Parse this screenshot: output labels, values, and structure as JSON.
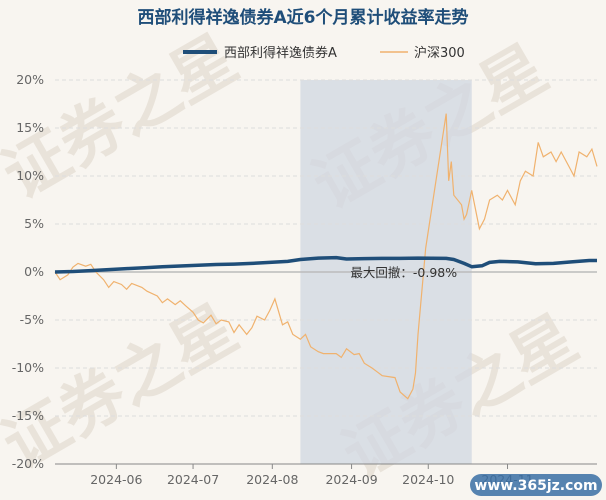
{
  "chart_data": {
    "type": "line",
    "title": "西部利得祥逸债券A近6个月累计收益率走势",
    "series": [
      {
        "name": "西部利得祥逸债券A",
        "color": "#1f4e79",
        "values": [
          [
            "2024-05-08",
            0.0
          ],
          [
            "2024-05-15",
            0.05
          ],
          [
            "2024-05-22",
            0.15
          ],
          [
            "2024-05-29",
            0.25
          ],
          [
            "2024-06-05",
            0.35
          ],
          [
            "2024-06-12",
            0.45
          ],
          [
            "2024-06-19",
            0.55
          ],
          [
            "2024-06-26",
            0.62
          ],
          [
            "2024-07-03",
            0.7
          ],
          [
            "2024-07-10",
            0.78
          ],
          [
            "2024-07-17",
            0.82
          ],
          [
            "2024-07-24",
            0.9
          ],
          [
            "2024-07-31",
            1.0
          ],
          [
            "2024-08-07",
            1.1
          ],
          [
            "2024-08-12",
            1.3
          ],
          [
            "2024-08-19",
            1.45
          ],
          [
            "2024-08-26",
            1.5
          ],
          [
            "2024-08-30",
            1.35
          ],
          [
            "2024-09-06",
            1.4
          ],
          [
            "2024-09-13",
            1.42
          ],
          [
            "2024-09-20",
            1.42
          ],
          [
            "2024-09-27",
            1.45
          ],
          [
            "2024-10-08",
            1.42
          ],
          [
            "2024-10-11",
            1.3
          ],
          [
            "2024-10-15",
            0.9
          ],
          [
            "2024-10-18",
            0.55
          ],
          [
            "2024-10-22",
            0.65
          ],
          [
            "2024-10-25",
            1.0
          ],
          [
            "2024-10-29",
            1.1
          ],
          [
            "2024-11-05",
            1.05
          ],
          [
            "2024-11-12",
            0.85
          ],
          [
            "2024-11-19",
            0.9
          ],
          [
            "2024-11-26",
            1.05
          ],
          [
            "2024-12-03",
            1.2
          ],
          [
            "2024-12-06",
            1.2
          ]
        ]
      },
      {
        "name": "沪深300",
        "color": "#f0b26e",
        "values": [
          [
            "2024-05-08",
            0.0
          ],
          [
            "2024-05-10",
            -0.8
          ],
          [
            "2024-05-13",
            -0.3
          ],
          [
            "2024-05-15",
            0.5
          ],
          [
            "2024-05-17",
            0.9
          ],
          [
            "2024-05-20",
            0.6
          ],
          [
            "2024-05-22",
            0.8
          ],
          [
            "2024-05-24",
            0.0
          ],
          [
            "2024-05-27",
            -0.8
          ],
          [
            "2024-05-29",
            -1.6
          ],
          [
            "2024-05-31",
            -1.0
          ],
          [
            "2024-06-03",
            -1.3
          ],
          [
            "2024-06-05",
            -1.8
          ],
          [
            "2024-06-07",
            -1.2
          ],
          [
            "2024-06-11",
            -1.6
          ],
          [
            "2024-06-13",
            -2.0
          ],
          [
            "2024-06-17",
            -2.5
          ],
          [
            "2024-06-19",
            -3.2
          ],
          [
            "2024-06-21",
            -2.8
          ],
          [
            "2024-06-24",
            -3.4
          ],
          [
            "2024-06-26",
            -3.0
          ],
          [
            "2024-06-28",
            -3.5
          ],
          [
            "2024-07-01",
            -4.2
          ],
          [
            "2024-07-03",
            -5.0
          ],
          [
            "2024-07-05",
            -5.3
          ],
          [
            "2024-07-08",
            -4.5
          ],
          [
            "2024-07-10",
            -5.4
          ],
          [
            "2024-07-12",
            -5.0
          ],
          [
            "2024-07-15",
            -5.2
          ],
          [
            "2024-07-17",
            -6.3
          ],
          [
            "2024-07-19",
            -5.5
          ],
          [
            "2024-07-22",
            -6.5
          ],
          [
            "2024-07-24",
            -5.8
          ],
          [
            "2024-07-26",
            -4.6
          ],
          [
            "2024-07-29",
            -5.0
          ],
          [
            "2024-07-31",
            -4.0
          ],
          [
            "2024-08-02",
            -2.8
          ],
          [
            "2024-08-05",
            -5.5
          ],
          [
            "2024-08-07",
            -5.2
          ],
          [
            "2024-08-09",
            -6.5
          ],
          [
            "2024-08-12",
            -7.0
          ],
          [
            "2024-08-14",
            -6.5
          ],
          [
            "2024-08-16",
            -7.8
          ],
          [
            "2024-08-19",
            -8.3
          ],
          [
            "2024-08-21",
            -8.5
          ],
          [
            "2024-08-23",
            -8.5
          ],
          [
            "2024-08-26",
            -8.5
          ],
          [
            "2024-08-28",
            -8.9
          ],
          [
            "2024-08-30",
            -8.0
          ],
          [
            "2024-09-02",
            -8.6
          ],
          [
            "2024-09-04",
            -8.5
          ],
          [
            "2024-09-06",
            -9.5
          ],
          [
            "2024-09-09",
            -10.0
          ],
          [
            "2024-09-11",
            -10.4
          ],
          [
            "2024-09-13",
            -10.8
          ],
          [
            "2024-09-18",
            -11.0
          ],
          [
            "2024-09-20",
            -12.5
          ],
          [
            "2024-09-23",
            -13.2
          ],
          [
            "2024-09-25",
            -12.2
          ],
          [
            "2024-09-26",
            -10.5
          ],
          [
            "2024-09-27",
            -6.5
          ],
          [
            "2024-09-30",
            2.5
          ],
          [
            "2024-10-08",
            16.5
          ],
          [
            "2024-10-09",
            9.5
          ],
          [
            "2024-10-10",
            11.5
          ],
          [
            "2024-10-11",
            8.0
          ],
          [
            "2024-10-14",
            7.0
          ],
          [
            "2024-10-15",
            5.5
          ],
          [
            "2024-10-16",
            6.0
          ],
          [
            "2024-10-18",
            8.5
          ],
          [
            "2024-10-21",
            4.5
          ],
          [
            "2024-10-23",
            5.5
          ],
          [
            "2024-10-25",
            7.5
          ],
          [
            "2024-10-28",
            8.0
          ],
          [
            "2024-10-30",
            7.5
          ],
          [
            "2024-11-01",
            8.5
          ],
          [
            "2024-11-04",
            7.0
          ],
          [
            "2024-11-06",
            9.5
          ],
          [
            "2024-11-08",
            10.5
          ],
          [
            "2024-11-11",
            10.0
          ],
          [
            "2024-11-13",
            13.5
          ],
          [
            "2024-11-15",
            12.0
          ],
          [
            "2024-11-18",
            12.5
          ],
          [
            "2024-11-20",
            11.5
          ],
          [
            "2024-11-22",
            12.5
          ],
          [
            "2024-11-25",
            11.0
          ],
          [
            "2024-11-27",
            10.0
          ],
          [
            "2024-11-29",
            12.5
          ],
          [
            "2024-12-02",
            12.0
          ],
          [
            "2024-12-04",
            12.8
          ],
          [
            "2024-12-06",
            11.0
          ]
        ]
      }
    ],
    "x_range": [
      "2024-05-08",
      "2024-12-06"
    ],
    "x_ticks": [
      "2024-06",
      "2024-07",
      "2024-08",
      "2024-09",
      "2024-10",
      "2024-11"
    ],
    "ylim": [
      -20,
      20
    ],
    "y_ticks": [
      "20%",
      "15%",
      "10%",
      "5%",
      "0%",
      "-5%",
      "-10%",
      "-15%",
      "-20%"
    ],
    "y_tick_values": [
      20,
      15,
      10,
      5,
      0,
      -5,
      -10,
      -15,
      -20
    ],
    "grid": true,
    "legend_position": "top-center",
    "max_drawdown": {
      "label": "最大回撤：-0.98%",
      "start": "2024-08-12",
      "end": "2024-10-18",
      "shade_color": "#d0d7e2"
    }
  },
  "watermark": {
    "text": "证券之星",
    "site_badge": "www.365jz.com"
  }
}
